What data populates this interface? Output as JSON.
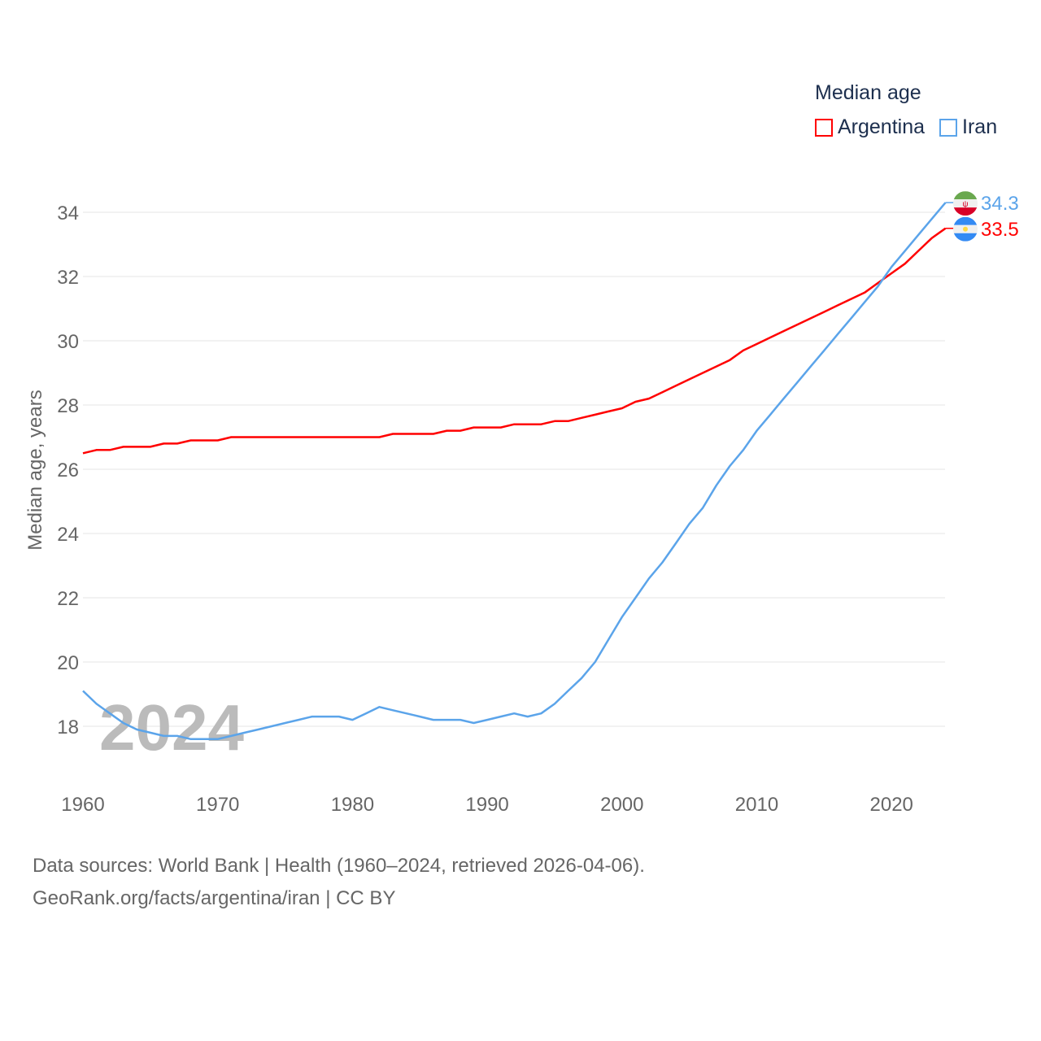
{
  "chart_data": {
    "type": "line",
    "ylabel": "Median age, years",
    "xlabel": "",
    "legend_title": "Median age",
    "legend_position": "top-right",
    "watermark_year": "2024",
    "xlim": [
      1960,
      2024
    ],
    "ylim": [
      16.5,
      34.8
    ],
    "yticks": [
      "18",
      "20",
      "22",
      "24",
      "26",
      "28",
      "30",
      "32",
      "34"
    ],
    "xticks": [
      "1960",
      "1970",
      "1980",
      "1990",
      "2000",
      "2010",
      "2020"
    ],
    "grid": true,
    "x": [
      1960,
      1961,
      1962,
      1963,
      1964,
      1965,
      1966,
      1967,
      1968,
      1969,
      1970,
      1971,
      1972,
      1973,
      1974,
      1975,
      1976,
      1977,
      1978,
      1979,
      1980,
      1981,
      1982,
      1983,
      1984,
      1985,
      1986,
      1987,
      1988,
      1989,
      1990,
      1991,
      1992,
      1993,
      1994,
      1995,
      1996,
      1997,
      1998,
      1999,
      2000,
      2001,
      2002,
      2003,
      2004,
      2005,
      2006,
      2007,
      2008,
      2009,
      2010,
      2011,
      2012,
      2013,
      2014,
      2015,
      2016,
      2017,
      2018,
      2019,
      2020,
      2021,
      2022,
      2023,
      2024
    ],
    "series": [
      {
        "name": "Argentina",
        "color": "#ff0000",
        "end_label": "33.5",
        "values": [
          26.5,
          26.6,
          26.6,
          26.7,
          26.7,
          26.7,
          26.8,
          26.8,
          26.9,
          26.9,
          26.9,
          27.0,
          27.0,
          27.0,
          27.0,
          27.0,
          27.0,
          27.0,
          27.0,
          27.0,
          27.0,
          27.0,
          27.0,
          27.1,
          27.1,
          27.1,
          27.1,
          27.2,
          27.2,
          27.3,
          27.3,
          27.3,
          27.4,
          27.4,
          27.4,
          27.5,
          27.5,
          27.6,
          27.7,
          27.8,
          27.9,
          28.1,
          28.2,
          28.4,
          28.6,
          28.8,
          29.0,
          29.2,
          29.4,
          29.7,
          29.9,
          30.1,
          30.3,
          30.5,
          30.7,
          30.9,
          31.1,
          31.3,
          31.5,
          31.8,
          32.1,
          32.4,
          32.8,
          33.2,
          33.5
        ]
      },
      {
        "name": "Iran",
        "color": "#5ba4ea",
        "end_label": "34.3",
        "values": [
          19.1,
          18.7,
          18.4,
          18.1,
          17.9,
          17.8,
          17.7,
          17.7,
          17.6,
          17.6,
          17.6,
          17.7,
          17.8,
          17.9,
          18.0,
          18.1,
          18.2,
          18.3,
          18.3,
          18.3,
          18.2,
          18.4,
          18.6,
          18.5,
          18.4,
          18.3,
          18.2,
          18.2,
          18.2,
          18.1,
          18.2,
          18.3,
          18.4,
          18.3,
          18.4,
          18.7,
          19.1,
          19.5,
          20.0,
          20.7,
          21.4,
          22.0,
          22.6,
          23.1,
          23.7,
          24.3,
          24.8,
          25.5,
          26.1,
          26.6,
          27.2,
          27.7,
          28.2,
          28.7,
          29.2,
          29.7,
          30.2,
          30.7,
          31.2,
          31.7,
          32.3,
          32.8,
          33.3,
          33.8,
          34.3
        ]
      }
    ]
  },
  "footer": {
    "source_line": "Data sources: World Bank | Health (1960–2024, retrieved 2026-04-06).",
    "credit_line": "GeoRank.org/facts/argentina/iran | CC BY"
  }
}
